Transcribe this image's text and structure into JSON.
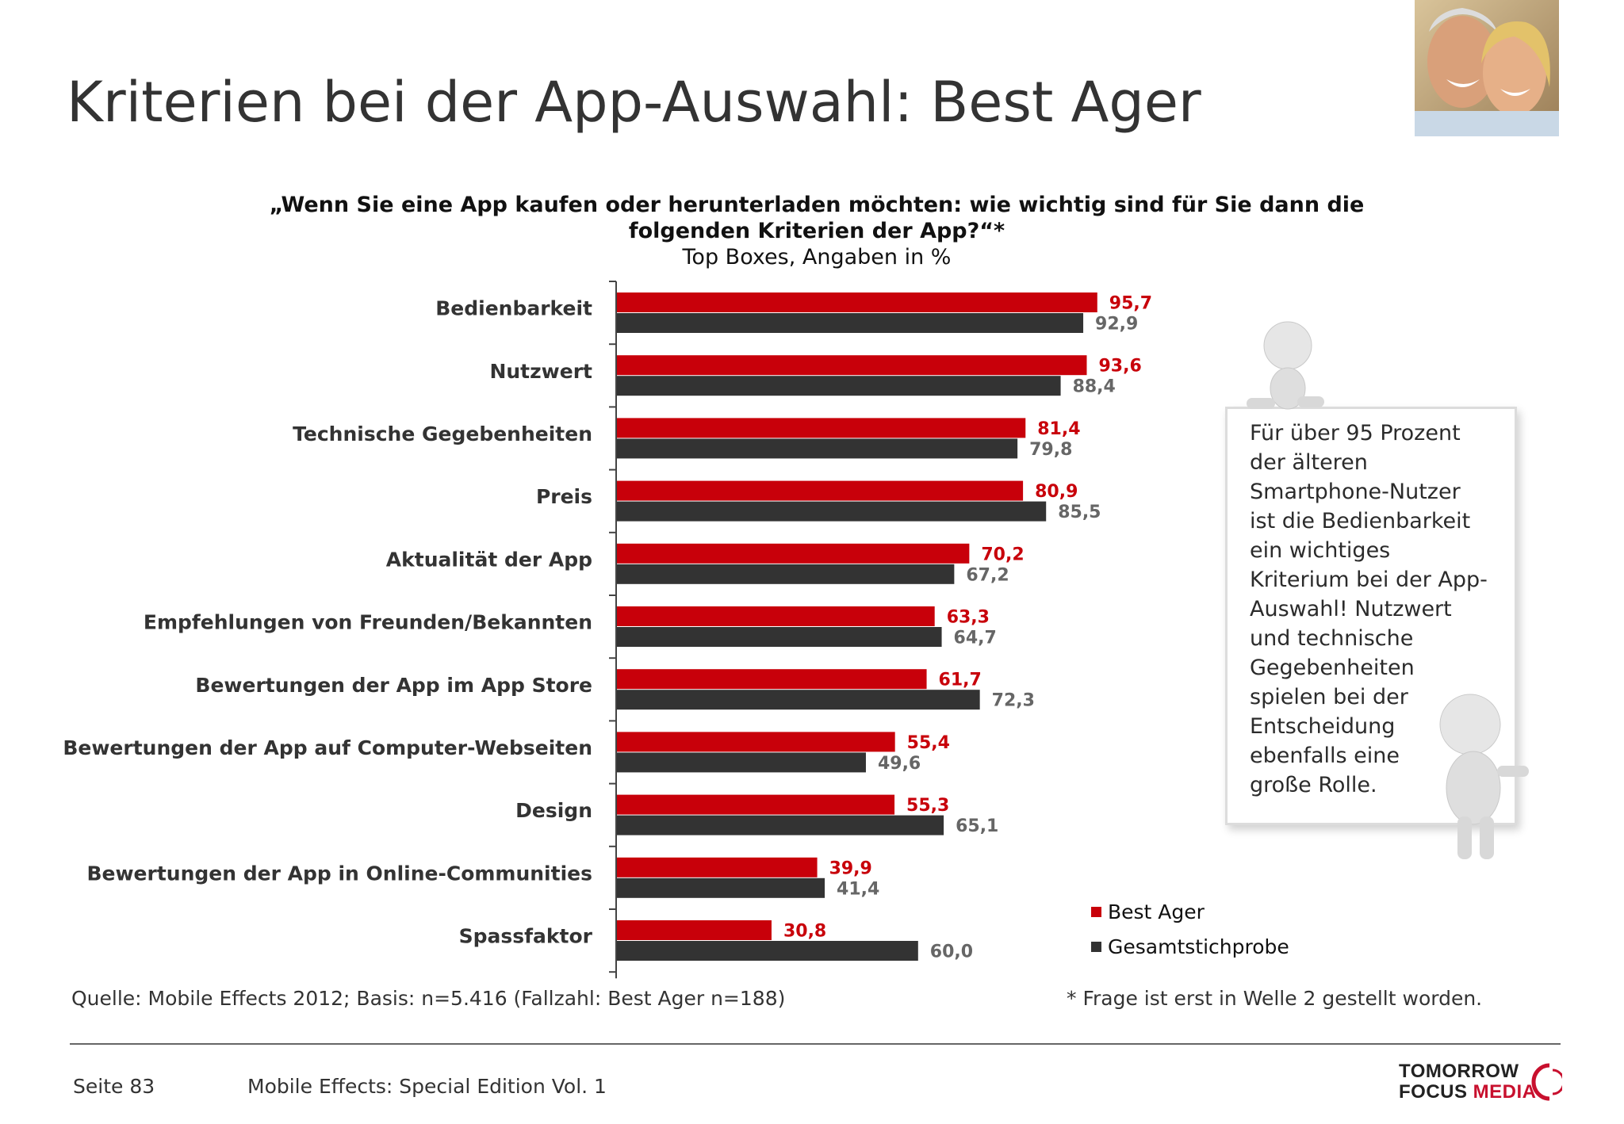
{
  "page": {
    "title": "Kriterien bei der App-Auswahl: Best Ager"
  },
  "question": {
    "line1": "„Wenn Sie eine App kaufen oder herunterladen möchten: wie wichtig sind für Sie dann die",
    "line2": "folgenden Kriterien der App?“*",
    "subtitle": "Top Boxes, Angaben in %"
  },
  "chart_data": {
    "type": "bar",
    "orientation": "horizontal",
    "categories": [
      "Bedienbarkeit",
      "Nutzwert",
      "Technische Gegebenheiten",
      "Preis",
      "Aktualität der App",
      "Empfehlungen von Freunden/Bekannten",
      "Bewertungen der App im App Store",
      "Bewertungen der App auf Computer-Webseiten",
      "Design",
      "Bewertungen der App in Online-Communities",
      "Spassfaktor"
    ],
    "series": [
      {
        "name": "Best Ager",
        "color": "#c8000a",
        "values": [
          95.7,
          93.6,
          81.4,
          80.9,
          70.2,
          63.3,
          61.7,
          55.4,
          55.3,
          39.9,
          30.8
        ],
        "labels": [
          "95,7",
          "93,6",
          "81,4",
          "80,9",
          "70,2",
          "63,3",
          "61,7",
          "55,4",
          "55,3",
          "39,9",
          "30,8"
        ]
      },
      {
        "name": "Gesamtstichprobe",
        "color": "#333333",
        "values": [
          92.9,
          88.4,
          79.8,
          85.5,
          67.2,
          64.7,
          72.3,
          49.6,
          65.1,
          41.4,
          60.0
        ],
        "labels": [
          "92,9",
          "88,4",
          "79,8",
          "85,5",
          "67,2",
          "64,7",
          "72,3",
          "49,6",
          "65,1",
          "41,4",
          "60,0"
        ]
      }
    ],
    "xlim": [
      0,
      100
    ],
    "grid": false,
    "legend": "bottom-right"
  },
  "legend": {
    "items": [
      "Best Ager",
      "Gesamtstichprobe"
    ]
  },
  "note": {
    "lines": [
      "Für über 95 Prozent",
      "der älteren",
      "Smartphone-Nutzer",
      "ist die Bedienbarkeit",
      "ein wichtiges",
      "Kriterium bei der App-",
      "Auswahl! Nutzwert",
      "und technische",
      "Gegebenheiten",
      "spielen bei der",
      "Entscheidung",
      "ebenfalls eine",
      "große Rolle."
    ]
  },
  "footer": {
    "source": "Quelle: Mobile Effects 2012; Basis: n=5.416 (Fallzahl: Best Ager n=188)",
    "footnote": "* Frage ist erst in Welle 2 gestellt worden.",
    "page_number": "Seite 83",
    "publication": "Mobile Effects: Special Edition Vol. 1",
    "logo_line1": "TOMORROW",
    "logo_line2a": "FOCUS ",
    "logo_line2b": "MEDIA"
  },
  "colors": {
    "red_series": "#c8000a",
    "dark_series": "#333333",
    "red_label": "#c8000a",
    "dark_label": "#666666"
  }
}
